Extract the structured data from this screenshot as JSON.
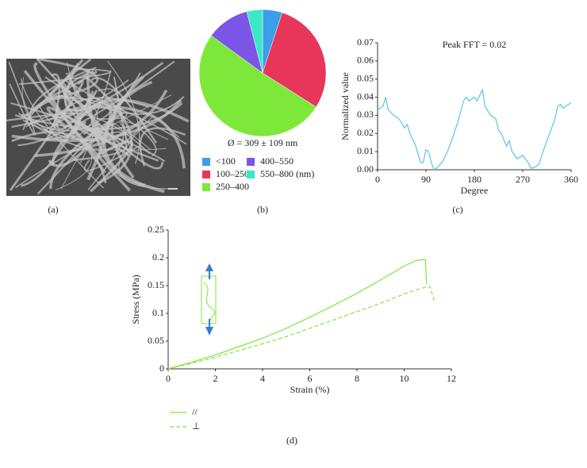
{
  "figure_labels": [
    "(a)",
    "(b)",
    "(c)",
    "(d)"
  ],
  "chart_data": [
    {
      "type": "pie",
      "subtitle": "Ø = 309 ± 109 nm",
      "categories": [
        "<100",
        "100–250",
        "250–400",
        "400–550",
        "550–800 (nm)"
      ],
      "values": [
        5,
        29,
        51,
        11,
        4
      ],
      "colors": [
        "#3a9ee8",
        "#e8355a",
        "#7ee83a",
        "#7b55e6",
        "#3ae8c8"
      ]
    },
    {
      "type": "line",
      "xlabel": "Degree",
      "ylabel": "Normalized value",
      "annotation": "Peak FFT = 0.02",
      "x": [
        0,
        10,
        15,
        20,
        30,
        40,
        50,
        55,
        60,
        70,
        80,
        85,
        90,
        95,
        100,
        105,
        110,
        120,
        130,
        140,
        150,
        160,
        165,
        170,
        180,
        185,
        190,
        195,
        200,
        210,
        220,
        225,
        230,
        240,
        245,
        250,
        260,
        270,
        280,
        285,
        290,
        300,
        310,
        320,
        330,
        335,
        340,
        345,
        360
      ],
      "values": [
        0.033,
        0.035,
        0.04,
        0.033,
        0.03,
        0.028,
        0.023,
        0.025,
        0.02,
        0.014,
        0.004,
        0.004,
        0.011,
        0.01,
        0.004,
        0.0,
        0.001,
        0.004,
        0.01,
        0.018,
        0.027,
        0.038,
        0.04,
        0.038,
        0.04,
        0.038,
        0.041,
        0.044,
        0.035,
        0.03,
        0.028,
        0.022,
        0.02,
        0.013,
        0.016,
        0.01,
        0.006,
        0.008,
        0.004,
        0.001,
        0.001,
        0.003,
        0.012,
        0.02,
        0.028,
        0.035,
        0.036,
        0.034,
        0.037
      ],
      "color": "#5bc3e6",
      "xlim": [
        0,
        360
      ],
      "xticks": [
        0,
        90,
        180,
        270,
        360
      ],
      "ylim": [
        0,
        0.07
      ],
      "yticks": [
        {
          "value": 0,
          "label": "0.00"
        },
        {
          "value": 0.01,
          "label": "0.01"
        },
        {
          "value": 0.02,
          "label": "0.02"
        },
        {
          "value": 0.03,
          "label": "0.03"
        },
        {
          "value": 0.04,
          "label": "0.04"
        },
        {
          "value": 0.05,
          "label": "0.05"
        },
        {
          "value": 0.06,
          "label": "0.06"
        },
        {
          "value": 0.07,
          "label": "0.07"
        }
      ]
    },
    {
      "type": "line",
      "xlabel": "Strain (%)",
      "ylabel": "Stress (MPa)",
      "legend": "bottom-left",
      "series": [
        {
          "name": "//",
          "color": "#7ee83a",
          "dash": false,
          "x": [
            0,
            1,
            2,
            3,
            4,
            5,
            6,
            7,
            8,
            9,
            10,
            10.5,
            10.9,
            10.95
          ],
          "values": [
            0,
            0.012,
            0.025,
            0.04,
            0.055,
            0.073,
            0.093,
            0.114,
            0.136,
            0.16,
            0.185,
            0.195,
            0.197,
            0.153
          ]
        },
        {
          "name": "⊥",
          "color": "#7ee83a",
          "dash": true,
          "x": [
            0,
            1,
            2,
            3,
            4,
            5,
            6,
            7,
            8,
            9,
            10,
            10.5,
            10.9,
            11.1,
            11.3
          ],
          "values": [
            0,
            0.01,
            0.021,
            0.033,
            0.045,
            0.058,
            0.073,
            0.088,
            0.103,
            0.118,
            0.135,
            0.142,
            0.147,
            0.148,
            0.118
          ]
        }
      ],
      "xlim": [
        0,
        12
      ],
      "xticks": [
        0,
        2,
        4,
        6,
        8,
        10,
        12
      ],
      "ylim": [
        0,
        0.25
      ],
      "yticks": [
        0,
        0.05,
        0.1,
        0.15,
        0.2,
        0.25
      ]
    }
  ]
}
